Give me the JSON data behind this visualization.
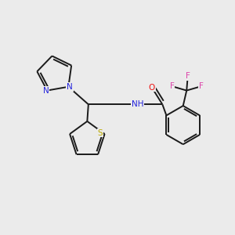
{
  "background_color": "#ebebeb",
  "bond_color": "#1a1a1a",
  "atom_colors": {
    "N": "#2222dd",
    "S": "#bbaa00",
    "O": "#ee1111",
    "F": "#dd44aa",
    "NH": "#2222dd"
  },
  "figsize": [
    3.0,
    3.0
  ],
  "dpi": 100,
  "lw": 1.4,
  "fontsize": 7.5
}
